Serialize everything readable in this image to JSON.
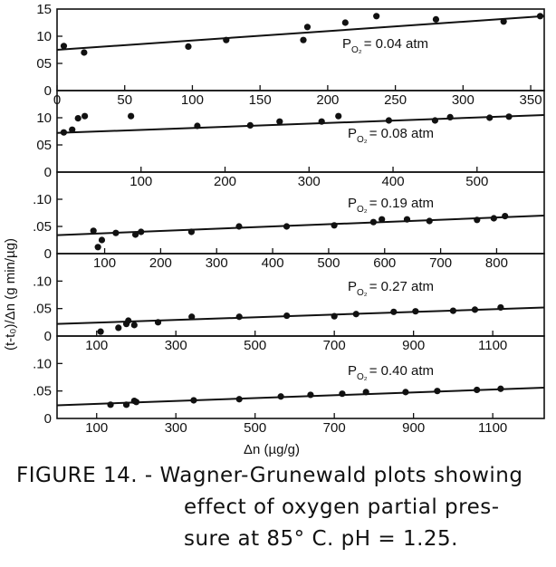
{
  "figure": {
    "ylabel": "(t-t₀)/Δn (g min/µg)",
    "xlabel": "Δn (µg/g)",
    "caption_lines": [
      "FIGURE 14. - Wagner-Grunewald plots showing",
      "effect of oxygen partial pres-",
      "sure at 85° C. pH = 1.25."
    ]
  },
  "chart_data": [
    {
      "type": "scatter",
      "panel": "Po2 = 0.04 atm",
      "annotation": {
        "prefix": "P",
        "subscript": "O₂",
        "value": "= 0.04 atm"
      },
      "xlim": [
        0,
        360
      ],
      "ylim": [
        0,
        0.15
      ],
      "xticks": [
        0,
        50,
        100,
        150,
        200,
        250,
        300,
        350
      ],
      "xticklabels": [
        "0",
        "50",
        "100",
        "150",
        "200",
        "250",
        "300",
        "350"
      ],
      "yticks": [
        0,
        0.05,
        0.1,
        0.15
      ],
      "yticklabels": [
        "0",
        "05",
        "10",
        "15"
      ],
      "points": [
        [
          5,
          0.082
        ],
        [
          20,
          0.07
        ],
        [
          97,
          0.081
        ],
        [
          125,
          0.093
        ],
        [
          182,
          0.093
        ],
        [
          185,
          0.117
        ],
        [
          213,
          0.125
        ],
        [
          236,
          0.137
        ],
        [
          280,
          0.131
        ],
        [
          330,
          0.127
        ],
        [
          357,
          0.137
        ]
      ],
      "fit_line": [
        [
          0,
          0.075
        ],
        [
          360,
          0.137
        ]
      ]
    },
    {
      "type": "scatter",
      "panel": "Po2 = 0.08 atm",
      "annotation": {
        "prefix": "P",
        "subscript": "O₂",
        "value": "= 0.08 atm"
      },
      "xlim": [
        0,
        580
      ],
      "ylim": [
        0,
        0.15
      ],
      "xticks": [
        100,
        200,
        300,
        400,
        500
      ],
      "xticklabels": [
        "100",
        "200",
        "300",
        "400",
        "500"
      ],
      "yticks": [
        0,
        0.05,
        0.1
      ],
      "yticklabels": [
        "0",
        "05",
        "10"
      ],
      "points": [
        [
          8,
          0.073
        ],
        [
          18,
          0.078
        ],
        [
          25,
          0.099
        ],
        [
          33,
          0.103
        ],
        [
          88,
          0.103
        ],
        [
          167,
          0.085
        ],
        [
          230,
          0.086
        ],
        [
          265,
          0.093
        ],
        [
          315,
          0.093
        ],
        [
          335,
          0.103
        ],
        [
          395,
          0.095
        ],
        [
          450,
          0.095
        ],
        [
          468,
          0.101
        ],
        [
          515,
          0.1
        ],
        [
          538,
          0.102
        ]
      ],
      "fit_line": [
        [
          0,
          0.072
        ],
        [
          580,
          0.105
        ]
      ]
    },
    {
      "type": "scatter",
      "panel": "Po2 = 0.19 atm",
      "annotation": {
        "prefix": "P",
        "subscript": "O₂",
        "value": "= 0.19 atm"
      },
      "xlim": [
        15,
        885
      ],
      "ylim": [
        0,
        0.15
      ],
      "xticks": [
        100,
        200,
        300,
        400,
        500,
        600,
        700,
        800
      ],
      "xticklabels": [
        "100",
        "200",
        "300",
        "400",
        "500",
        "600",
        "700",
        "800"
      ],
      "yticks": [
        0,
        0.05,
        0.1
      ],
      "yticklabels": [
        "0",
        ".05",
        ".10"
      ],
      "points": [
        [
          80,
          0.042
        ],
        [
          88,
          0.012
        ],
        [
          95,
          0.025
        ],
        [
          120,
          0.038
        ],
        [
          155,
          0.035
        ],
        [
          165,
          0.04
        ],
        [
          255,
          0.04
        ],
        [
          340,
          0.05
        ],
        [
          425,
          0.05
        ],
        [
          510,
          0.052
        ],
        [
          580,
          0.058
        ],
        [
          595,
          0.063
        ],
        [
          640,
          0.063
        ],
        [
          680,
          0.06
        ],
        [
          765,
          0.062
        ],
        [
          795,
          0.065
        ],
        [
          815,
          0.069
        ]
      ],
      "fit_line": [
        [
          15,
          0.034
        ],
        [
          885,
          0.07
        ]
      ]
    },
    {
      "type": "scatter",
      "panel": "Po2 = 0.27 atm",
      "annotation": {
        "prefix": "P",
        "subscript": "O₂",
        "value": "= 0.27 atm"
      },
      "xlim": [
        0,
        1230
      ],
      "ylim": [
        0,
        0.15
      ],
      "xticks": [
        100,
        300,
        500,
        700,
        900,
        1100
      ],
      "xticklabels": [
        "100",
        "300",
        "500",
        "700",
        "900",
        "1100"
      ],
      "yticks": [
        0,
        0.05,
        0.1
      ],
      "yticklabels": [
        "0",
        ".05",
        ".10"
      ],
      "points": [
        [
          110,
          0.008
        ],
        [
          155,
          0.015
        ],
        [
          175,
          0.022
        ],
        [
          180,
          0.028
        ],
        [
          195,
          0.02
        ],
        [
          255,
          0.025
        ],
        [
          340,
          0.035
        ],
        [
          460,
          0.035
        ],
        [
          580,
          0.037
        ],
        [
          700,
          0.036
        ],
        [
          755,
          0.04
        ],
        [
          850,
          0.044
        ],
        [
          905,
          0.045
        ],
        [
          1000,
          0.046
        ],
        [
          1055,
          0.048
        ],
        [
          1120,
          0.052
        ]
      ],
      "fit_line": [
        [
          0,
          0.022
        ],
        [
          1230,
          0.052
        ]
      ]
    },
    {
      "type": "scatter",
      "panel": "Po2 = 0.40 atm",
      "annotation": {
        "prefix": "P",
        "subscript": "O₂",
        "value": "= 0.40 atm"
      },
      "xlim": [
        0,
        1230
      ],
      "ylim": [
        0,
        0.15
      ],
      "xticks": [
        100,
        300,
        500,
        700,
        900,
        1100
      ],
      "xticklabels": [
        "100",
        "300",
        "500",
        "700",
        "900",
        "1100"
      ],
      "yticks": [
        0,
        0.05,
        0.1
      ],
      "yticklabels": [
        "0",
        ".05",
        ".10"
      ],
      "points": [
        [
          135,
          0.025
        ],
        [
          175,
          0.025
        ],
        [
          195,
          0.032
        ],
        [
          200,
          0.03
        ],
        [
          345,
          0.033
        ],
        [
          460,
          0.035
        ],
        [
          565,
          0.04
        ],
        [
          640,
          0.043
        ],
        [
          720,
          0.045
        ],
        [
          780,
          0.048
        ],
        [
          880,
          0.048
        ],
        [
          960,
          0.05
        ],
        [
          1060,
          0.052
        ],
        [
          1120,
          0.054
        ]
      ],
      "fit_line": [
        [
          0,
          0.024
        ],
        [
          1230,
          0.056
        ]
      ]
    }
  ]
}
